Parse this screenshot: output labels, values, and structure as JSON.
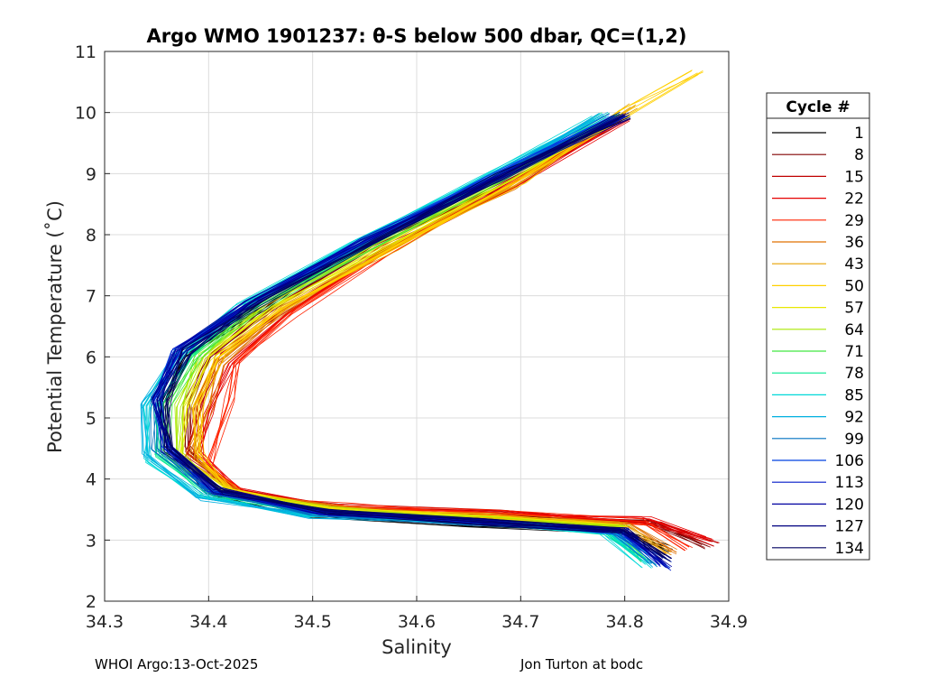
{
  "chart_data": {
    "type": "line",
    "title": "Argo WMO 1901237: θ-S below 500 dbar,  QC=(1,2)",
    "xlabel": "Salinity",
    "ylabel": "Potential Temperature (˚C)",
    "xlim": [
      34.3,
      34.9
    ],
    "ylim": [
      2,
      11
    ],
    "xticks": [
      "34.3",
      "34.4",
      "34.5",
      "34.6",
      "34.7",
      "34.8",
      "34.9"
    ],
    "yticks": [
      "2",
      "3",
      "4",
      "5",
      "6",
      "7",
      "8",
      "9",
      "10",
      "11"
    ],
    "grid": true,
    "legend": {
      "title": "Cycle #",
      "placement": "right-outside",
      "entries": [
        {
          "label": "1",
          "color": "#000000"
        },
        {
          "label": "8",
          "color": "#800000"
        },
        {
          "label": "15",
          "color": "#c00000"
        },
        {
          "label": "22",
          "color": "#e60000"
        },
        {
          "label": "29",
          "color": "#ff2200"
        },
        {
          "label": "36",
          "color": "#e07000"
        },
        {
          "label": "43",
          "color": "#e8a000"
        },
        {
          "label": "50",
          "color": "#ffd000"
        },
        {
          "label": "57",
          "color": "#e8e800"
        },
        {
          "label": "64",
          "color": "#a8e800"
        },
        {
          "label": "71",
          "color": "#40e840"
        },
        {
          "label": "78",
          "color": "#00e890"
        },
        {
          "label": "85",
          "color": "#00d8d8"
        },
        {
          "label": "92",
          "color": "#00b0e0"
        },
        {
          "label": "99",
          "color": "#0070c0"
        },
        {
          "label": "106",
          "color": "#0040e0"
        },
        {
          "label": "113",
          "color": "#0018c8"
        },
        {
          "label": "120",
          "color": "#0000a0"
        },
        {
          "label": "127",
          "color": "#000080"
        },
        {
          "label": "134",
          "color": "#000060"
        }
      ]
    },
    "series": [
      {
        "name": "1",
        "color": "#000000",
        "x": [
          34.8,
          34.67,
          34.55,
          34.45,
          34.38,
          34.355,
          34.36,
          34.4,
          34.5,
          34.65,
          34.8,
          34.84
        ],
        "y": [
          9.95,
          8.9,
          7.9,
          6.8,
          6.0,
          5.2,
          4.5,
          3.8,
          3.4,
          3.25,
          3.1,
          2.85
        ]
      },
      {
        "name": "8",
        "color": "#800000",
        "x": [
          34.8,
          34.68,
          34.56,
          34.46,
          34.4,
          34.38,
          34.38,
          34.42,
          34.52,
          34.68,
          34.82,
          34.88
        ],
        "y": [
          9.95,
          8.8,
          7.8,
          6.8,
          6.0,
          5.2,
          4.5,
          3.8,
          3.5,
          3.4,
          3.3,
          2.9
        ]
      },
      {
        "name": "15",
        "color": "#c00000",
        "x": [
          34.8,
          34.69,
          34.57,
          34.47,
          34.41,
          34.39,
          34.38,
          34.43,
          34.53,
          34.68,
          34.83,
          34.89
        ],
        "y": [
          9.95,
          8.8,
          7.75,
          6.75,
          6.0,
          5.2,
          4.4,
          3.8,
          3.55,
          3.45,
          3.3,
          2.95
        ]
      },
      {
        "name": "22",
        "color": "#e60000",
        "x": [
          34.8,
          34.69,
          34.57,
          34.48,
          34.42,
          34.4,
          34.39,
          34.43,
          34.53,
          34.68,
          34.82,
          34.88
        ],
        "y": [
          9.9,
          8.8,
          7.75,
          6.75,
          5.9,
          5.1,
          4.4,
          3.8,
          3.55,
          3.45,
          3.35,
          3.0
        ]
      },
      {
        "name": "29",
        "color": "#ff2200",
        "x": [
          34.79,
          34.69,
          34.57,
          34.48,
          34.43,
          34.42,
          34.4,
          34.44,
          34.53,
          34.68,
          34.82,
          34.86
        ],
        "y": [
          9.9,
          8.8,
          7.7,
          6.7,
          5.9,
          5.3,
          4.2,
          3.7,
          3.55,
          3.45,
          3.3,
          2.85
        ]
      },
      {
        "name": "36",
        "color": "#e07000",
        "x": [
          34.79,
          34.69,
          34.57,
          34.47,
          34.41,
          34.4,
          34.38,
          34.43,
          34.53,
          34.67,
          34.8,
          34.85
        ],
        "y": [
          9.9,
          8.8,
          7.75,
          6.75,
          5.9,
          5.2,
          4.3,
          3.75,
          3.5,
          3.4,
          3.25,
          2.8
        ]
      },
      {
        "name": "43",
        "color": "#e8a000",
        "x": [
          34.81,
          34.7,
          34.58,
          34.47,
          34.41,
          34.39,
          34.39,
          34.43,
          34.53,
          34.67,
          34.8,
          34.84
        ],
        "y": [
          10.1,
          8.9,
          7.8,
          6.8,
          6.0,
          5.2,
          4.3,
          3.75,
          3.5,
          3.4,
          3.25,
          2.8
        ]
      },
      {
        "name": "50",
        "color": "#ffd000",
        "x": [
          34.87,
          34.8,
          34.7,
          34.58,
          34.47,
          34.41,
          34.39,
          34.39,
          34.42,
          34.52,
          34.67,
          34.8
        ],
        "y": [
          10.65,
          10.0,
          8.9,
          7.8,
          6.8,
          6.0,
          5.2,
          4.4,
          3.8,
          3.5,
          3.4,
          3.2
        ]
      },
      {
        "name": "57",
        "color": "#e8e800",
        "x": [
          34.8,
          34.69,
          34.57,
          34.46,
          34.4,
          34.38,
          34.37,
          34.42,
          34.52,
          34.67,
          34.8
        ],
        "y": [
          9.95,
          8.9,
          7.8,
          6.8,
          6.0,
          5.2,
          4.4,
          3.8,
          3.5,
          3.35,
          3.2
        ]
      },
      {
        "name": "64",
        "color": "#a8e800",
        "x": [
          34.8,
          34.68,
          34.56,
          34.45,
          34.39,
          34.37,
          34.37,
          34.41,
          34.52,
          34.67,
          34.8
        ],
        "y": [
          9.95,
          8.9,
          7.85,
          6.8,
          6.0,
          5.2,
          4.4,
          3.8,
          3.5,
          3.35,
          3.2
        ]
      },
      {
        "name": "71",
        "color": "#40e840",
        "x": [
          34.79,
          34.68,
          34.56,
          34.45,
          34.39,
          34.36,
          34.36,
          34.41,
          34.51,
          34.66,
          34.79,
          34.82
        ],
        "y": [
          9.95,
          8.9,
          7.85,
          6.85,
          6.0,
          5.2,
          4.4,
          3.75,
          3.45,
          3.3,
          3.15,
          2.7
        ]
      },
      {
        "name": "78",
        "color": "#00e890",
        "x": [
          34.78,
          34.67,
          34.55,
          34.44,
          34.38,
          34.35,
          34.35,
          34.4,
          34.5,
          34.65,
          34.78,
          34.82
        ],
        "y": [
          9.95,
          8.9,
          7.85,
          6.85,
          6.0,
          5.2,
          4.4,
          3.75,
          3.45,
          3.3,
          3.15,
          2.7
        ]
      },
      {
        "name": "85",
        "color": "#00d8d8",
        "x": [
          34.77,
          34.66,
          34.54,
          34.43,
          34.37,
          34.34,
          34.34,
          34.39,
          34.49,
          34.64,
          34.78,
          34.82
        ],
        "y": [
          9.9,
          8.9,
          7.9,
          6.85,
          6.0,
          5.2,
          4.3,
          3.7,
          3.4,
          3.3,
          3.15,
          2.6
        ]
      },
      {
        "name": "92",
        "color": "#00b0e0",
        "x": [
          34.78,
          34.67,
          34.55,
          34.44,
          34.37,
          34.34,
          34.34,
          34.39,
          34.5,
          34.65,
          34.79,
          34.83
        ],
        "y": [
          9.95,
          8.95,
          7.9,
          6.9,
          6.0,
          5.2,
          4.4,
          3.7,
          3.4,
          3.3,
          3.15,
          2.6
        ]
      },
      {
        "name": "99",
        "color": "#0070c0",
        "x": [
          34.79,
          34.67,
          34.55,
          34.44,
          34.37,
          34.35,
          34.35,
          34.4,
          34.5,
          34.65,
          34.79,
          34.83
        ],
        "y": [
          9.95,
          8.95,
          7.9,
          6.9,
          6.1,
          5.3,
          4.5,
          3.8,
          3.45,
          3.3,
          3.15,
          2.6
        ]
      },
      {
        "name": "106",
        "color": "#0040e0",
        "x": [
          34.79,
          34.67,
          34.55,
          34.44,
          34.37,
          34.35,
          34.36,
          34.4,
          34.5,
          34.65,
          34.79,
          34.84
        ],
        "y": [
          9.95,
          8.95,
          7.9,
          6.9,
          6.1,
          5.3,
          4.5,
          3.8,
          3.45,
          3.3,
          3.15,
          2.6
        ]
      },
      {
        "name": "113",
        "color": "#0018c8",
        "x": [
          34.8,
          34.68,
          34.55,
          34.44,
          34.37,
          34.35,
          34.36,
          34.41,
          34.51,
          34.66,
          34.8,
          34.84
        ],
        "y": [
          9.95,
          8.95,
          7.9,
          6.9,
          6.1,
          5.3,
          4.5,
          3.8,
          3.45,
          3.3,
          3.15,
          2.55
        ]
      },
      {
        "name": "120",
        "color": "#0000a0",
        "x": [
          34.8,
          34.68,
          34.55,
          34.44,
          34.37,
          34.35,
          34.36,
          34.41,
          34.51,
          34.66,
          34.8,
          34.84
        ],
        "y": [
          9.95,
          8.95,
          7.9,
          6.9,
          6.1,
          5.3,
          4.5,
          3.8,
          3.45,
          3.3,
          3.15,
          2.6
        ]
      },
      {
        "name": "127",
        "color": "#000080",
        "x": [
          34.8,
          34.68,
          34.56,
          34.45,
          34.38,
          34.35,
          34.36,
          34.41,
          34.51,
          34.66,
          34.8,
          34.84
        ],
        "y": [
          9.95,
          8.95,
          7.9,
          6.9,
          6.1,
          5.3,
          4.5,
          3.8,
          3.45,
          3.3,
          3.15,
          2.7
        ]
      },
      {
        "name": "134",
        "color": "#000060",
        "x": [
          34.8,
          34.68,
          34.56,
          34.45,
          34.38,
          34.36,
          34.36,
          34.41,
          34.51,
          34.66,
          34.8,
          34.84
        ],
        "y": [
          9.95,
          8.95,
          7.9,
          6.9,
          6.1,
          5.3,
          4.5,
          3.8,
          3.45,
          3.3,
          3.15,
          2.7
        ]
      }
    ]
  },
  "footer": {
    "left": "WHOI Argo:13-Oct-2025",
    "right": "Jon Turton at bodc"
  }
}
